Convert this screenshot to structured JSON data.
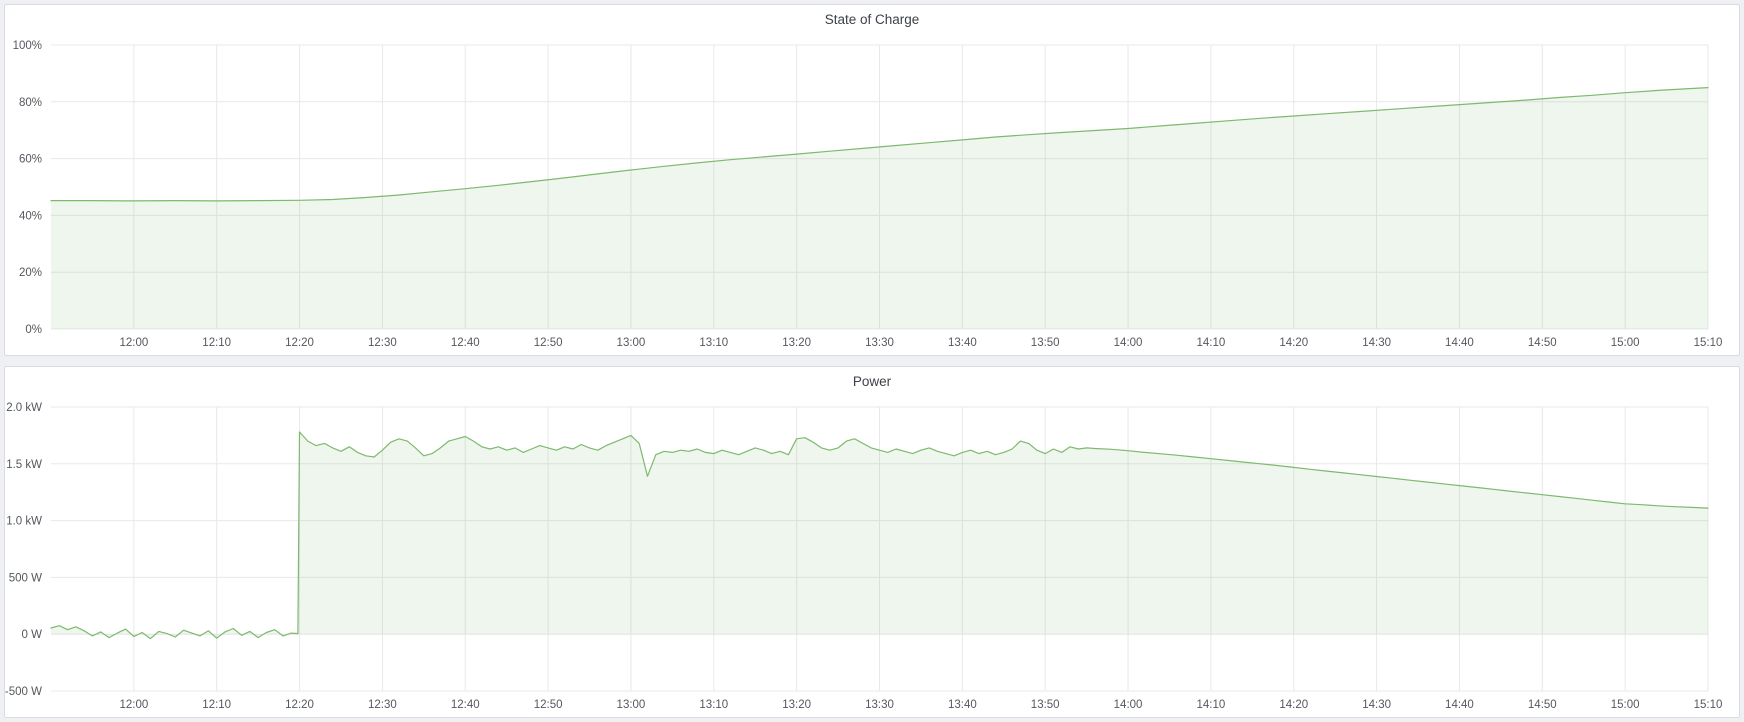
{
  "page": {
    "background": "#eef0f4",
    "panel_background": "#ffffff",
    "panel_border": "#d9dce2",
    "accent_green": "#7db96f"
  },
  "panels": [
    {
      "title": "State of Charge"
    },
    {
      "title": "Power"
    }
  ],
  "chart_data": [
    {
      "type": "area",
      "title": "State of Charge",
      "xlabel": "",
      "ylabel": "",
      "grid": true,
      "legend": "none",
      "x_unit": "minutes_since_midnight",
      "xlim": [
        710,
        910
      ],
      "ylim": [
        0,
        100
      ],
      "baseline": 0,
      "xticks": [
        {
          "value": 720,
          "label": "12:00"
        },
        {
          "value": 730,
          "label": "12:10"
        },
        {
          "value": 740,
          "label": "12:20"
        },
        {
          "value": 750,
          "label": "12:30"
        },
        {
          "value": 760,
          "label": "12:40"
        },
        {
          "value": 770,
          "label": "12:50"
        },
        {
          "value": 780,
          "label": "13:00"
        },
        {
          "value": 790,
          "label": "13:10"
        },
        {
          "value": 800,
          "label": "13:20"
        },
        {
          "value": 810,
          "label": "13:30"
        },
        {
          "value": 820,
          "label": "13:40"
        },
        {
          "value": 830,
          "label": "13:50"
        },
        {
          "value": 840,
          "label": "14:00"
        },
        {
          "value": 850,
          "label": "14:10"
        },
        {
          "value": 860,
          "label": "14:20"
        },
        {
          "value": 870,
          "label": "14:30"
        },
        {
          "value": 880,
          "label": "14:40"
        },
        {
          "value": 890,
          "label": "14:50"
        },
        {
          "value": 900,
          "label": "15:00"
        },
        {
          "value": 910,
          "label": "15:10"
        }
      ],
      "yticks": [
        {
          "value": 0,
          "label": "0%"
        },
        {
          "value": 20,
          "label": "20%"
        },
        {
          "value": 40,
          "label": "40%"
        },
        {
          "value": 60,
          "label": "60%"
        },
        {
          "value": 80,
          "label": "80%"
        },
        {
          "value": 100,
          "label": "100%"
        }
      ],
      "series": [
        {
          "name": "State of Charge",
          "color": "#7db96f",
          "fill": "rgba(125,185,111,0.12)",
          "points": [
            [
              710,
              45.2
            ],
            [
              715,
              45.2
            ],
            [
              720,
              45.1
            ],
            [
              725,
              45.2
            ],
            [
              730,
              45.1
            ],
            [
              735,
              45.2
            ],
            [
              740,
              45.3
            ],
            [
              744,
              45.6
            ],
            [
              748,
              46.3
            ],
            [
              752,
              47.2
            ],
            [
              756,
              48.3
            ],
            [
              760,
              49.4
            ],
            [
              764,
              50.6
            ],
            [
              768,
              51.9
            ],
            [
              772,
              53.2
            ],
            [
              776,
              54.6
            ],
            [
              780,
              56.0
            ],
            [
              784,
              57.3
            ],
            [
              788,
              58.5
            ],
            [
              792,
              59.6
            ],
            [
              796,
              60.6
            ],
            [
              800,
              61.6
            ],
            [
              804,
              62.6
            ],
            [
              808,
              63.6
            ],
            [
              812,
              64.6
            ],
            [
              816,
              65.6
            ],
            [
              820,
              66.6
            ],
            [
              824,
              67.6
            ],
            [
              828,
              68.4
            ],
            [
              832,
              69.2
            ],
            [
              836,
              69.9
            ],
            [
              840,
              70.6
            ],
            [
              844,
              71.5
            ],
            [
              848,
              72.4
            ],
            [
              852,
              73.3
            ],
            [
              856,
              74.2
            ],
            [
              860,
              75.0
            ],
            [
              864,
              75.8
            ],
            [
              868,
              76.6
            ],
            [
              872,
              77.4
            ],
            [
              876,
              78.2
            ],
            [
              880,
              79.0
            ],
            [
              884,
              79.8
            ],
            [
              888,
              80.6
            ],
            [
              892,
              81.5
            ],
            [
              896,
              82.3
            ],
            [
              900,
              83.2
            ],
            [
              904,
              84.0
            ],
            [
              908,
              84.7
            ],
            [
              910,
              85.0
            ]
          ]
        }
      ]
    },
    {
      "type": "area",
      "title": "Power",
      "xlabel": "",
      "ylabel": "",
      "grid": true,
      "legend": "none",
      "x_unit": "minutes_since_midnight",
      "xlim": [
        710,
        910
      ],
      "ylim": [
        -500,
        2000
      ],
      "baseline": 0,
      "xticks": [
        {
          "value": 720,
          "label": "12:00"
        },
        {
          "value": 730,
          "label": "12:10"
        },
        {
          "value": 740,
          "label": "12:20"
        },
        {
          "value": 750,
          "label": "12:30"
        },
        {
          "value": 760,
          "label": "12:40"
        },
        {
          "value": 770,
          "label": "12:50"
        },
        {
          "value": 780,
          "label": "13:00"
        },
        {
          "value": 790,
          "label": "13:10"
        },
        {
          "value": 800,
          "label": "13:20"
        },
        {
          "value": 810,
          "label": "13:30"
        },
        {
          "value": 820,
          "label": "13:40"
        },
        {
          "value": 830,
          "label": "13:50"
        },
        {
          "value": 840,
          "label": "14:00"
        },
        {
          "value": 850,
          "label": "14:10"
        },
        {
          "value": 860,
          "label": "14:20"
        },
        {
          "value": 870,
          "label": "14:30"
        },
        {
          "value": 880,
          "label": "14:40"
        },
        {
          "value": 890,
          "label": "14:50"
        },
        {
          "value": 900,
          "label": "15:00"
        },
        {
          "value": 910,
          "label": "15:10"
        }
      ],
      "yticks": [
        {
          "value": -500,
          "label": "-500 W"
        },
        {
          "value": 0,
          "label": "0 W"
        },
        {
          "value": 500,
          "label": "500 W"
        },
        {
          "value": 1000,
          "label": "1.0 kW"
        },
        {
          "value": 1500,
          "label": "1.5 kW"
        },
        {
          "value": 2000,
          "label": "2.0 kW"
        }
      ],
      "series": [
        {
          "name": "Power",
          "color": "#7db96f",
          "fill": "rgba(125,185,111,0.12)",
          "points": [
            [
              710,
              55
            ],
            [
              711,
              75
            ],
            [
              712,
              40
            ],
            [
              713,
              65
            ],
            [
              714,
              30
            ],
            [
              715,
              -15
            ],
            [
              716,
              20
            ],
            [
              717,
              -30
            ],
            [
              718,
              10
            ],
            [
              719,
              45
            ],
            [
              720,
              -20
            ],
            [
              721,
              15
            ],
            [
              722,
              -40
            ],
            [
              723,
              25
            ],
            [
              724,
              5
            ],
            [
              725,
              -25
            ],
            [
              726,
              35
            ],
            [
              727,
              10
            ],
            [
              728,
              -15
            ],
            [
              729,
              30
            ],
            [
              730,
              -35
            ],
            [
              731,
              20
            ],
            [
              732,
              50
            ],
            [
              733,
              -10
            ],
            [
              734,
              25
            ],
            [
              735,
              -30
            ],
            [
              736,
              15
            ],
            [
              737,
              40
            ],
            [
              738,
              -15
            ],
            [
              739,
              10
            ],
            [
              739.8,
              5
            ],
            [
              740,
              1780
            ],
            [
              741,
              1700
            ],
            [
              742,
              1660
            ],
            [
              743,
              1680
            ],
            [
              744,
              1640
            ],
            [
              745,
              1610
            ],
            [
              746,
              1650
            ],
            [
              747,
              1600
            ],
            [
              748,
              1570
            ],
            [
              749,
              1560
            ],
            [
              750,
              1620
            ],
            [
              751,
              1690
            ],
            [
              752,
              1720
            ],
            [
              753,
              1700
            ],
            [
              754,
              1640
            ],
            [
              755,
              1570
            ],
            [
              756,
              1590
            ],
            [
              757,
              1640
            ],
            [
              758,
              1700
            ],
            [
              759,
              1720
            ],
            [
              760,
              1740
            ],
            [
              761,
              1700
            ],
            [
              762,
              1650
            ],
            [
              763,
              1630
            ],
            [
              764,
              1650
            ],
            [
              765,
              1620
            ],
            [
              766,
              1640
            ],
            [
              767,
              1600
            ],
            [
              768,
              1630
            ],
            [
              769,
              1660
            ],
            [
              770,
              1640
            ],
            [
              771,
              1620
            ],
            [
              772,
              1650
            ],
            [
              773,
              1630
            ],
            [
              774,
              1670
            ],
            [
              775,
              1640
            ],
            [
              776,
              1620
            ],
            [
              777,
              1660
            ],
            [
              778,
              1690
            ],
            [
              779,
              1720
            ],
            [
              780,
              1750
            ],
            [
              781,
              1680
            ],
            [
              782,
              1390
            ],
            [
              783,
              1580
            ],
            [
              784,
              1610
            ],
            [
              785,
              1600
            ],
            [
              786,
              1620
            ],
            [
              787,
              1610
            ],
            [
              788,
              1630
            ],
            [
              789,
              1600
            ],
            [
              790,
              1590
            ],
            [
              791,
              1620
            ],
            [
              792,
              1600
            ],
            [
              793,
              1580
            ],
            [
              794,
              1610
            ],
            [
              795,
              1640
            ],
            [
              796,
              1620
            ],
            [
              797,
              1590
            ],
            [
              798,
              1610
            ],
            [
              799,
              1580
            ],
            [
              800,
              1720
            ],
            [
              801,
              1730
            ],
            [
              802,
              1690
            ],
            [
              803,
              1640
            ],
            [
              804,
              1620
            ],
            [
              805,
              1640
            ],
            [
              806,
              1700
            ],
            [
              807,
              1720
            ],
            [
              808,
              1680
            ],
            [
              809,
              1640
            ],
            [
              810,
              1620
            ],
            [
              811,
              1600
            ],
            [
              812,
              1630
            ],
            [
              813,
              1610
            ],
            [
              814,
              1590
            ],
            [
              815,
              1620
            ],
            [
              816,
              1640
            ],
            [
              817,
              1610
            ],
            [
              818,
              1590
            ],
            [
              819,
              1570
            ],
            [
              820,
              1600
            ],
            [
              821,
              1620
            ],
            [
              822,
              1590
            ],
            [
              823,
              1610
            ],
            [
              824,
              1580
            ],
            [
              825,
              1600
            ],
            [
              826,
              1630
            ],
            [
              827,
              1700
            ],
            [
              828,
              1680
            ],
            [
              829,
              1620
            ],
            [
              830,
              1590
            ],
            [
              831,
              1630
            ],
            [
              832,
              1600
            ],
            [
              833,
              1650
            ],
            [
              834,
              1630
            ],
            [
              835,
              1640
            ],
            [
              836,
              1635
            ],
            [
              838,
              1628
            ],
            [
              840,
              1615
            ],
            [
              842,
              1600
            ],
            [
              844,
              1588
            ],
            [
              846,
              1575
            ],
            [
              848,
              1560
            ],
            [
              850,
              1545
            ],
            [
              852,
              1530
            ],
            [
              854,
              1515
            ],
            [
              856,
              1500
            ],
            [
              858,
              1485
            ],
            [
              860,
              1468
            ],
            [
              862,
              1452
            ],
            [
              864,
              1436
            ],
            [
              866,
              1420
            ],
            [
              868,
              1404
            ],
            [
              870,
              1388
            ],
            [
              872,
              1372
            ],
            [
              874,
              1356
            ],
            [
              876,
              1340
            ],
            [
              878,
              1324
            ],
            [
              880,
              1308
            ],
            [
              882,
              1292
            ],
            [
              884,
              1276
            ],
            [
              886,
              1260
            ],
            [
              888,
              1244
            ],
            [
              890,
              1228
            ],
            [
              892,
              1212
            ],
            [
              894,
              1196
            ],
            [
              896,
              1180
            ],
            [
              898,
              1164
            ],
            [
              900,
              1148
            ],
            [
              902,
              1140
            ],
            [
              904,
              1130
            ],
            [
              906,
              1122
            ],
            [
              908,
              1116
            ],
            [
              910,
              1110
            ]
          ]
        }
      ]
    }
  ]
}
